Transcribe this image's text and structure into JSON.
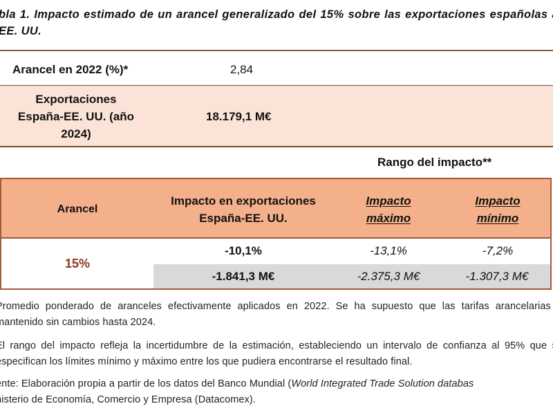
{
  "title": "bla 1. Impacto estimado de un arancel generalizado del 15% sobre las exportaciones españolas a EE. UU.",
  "summary": {
    "tariff_2022_label": "Arancel en 2022 (%)*",
    "tariff_2022_value": "2,84",
    "exports_label": "Exportaciones España-EE. UU. (año 2024)",
    "exports_value": "18.179,1 M€"
  },
  "range_header": "Rango del impacto**",
  "table": {
    "headers": {
      "arancel": "Arancel",
      "impacto": "Impacto en exportaciones España-EE. UU.",
      "maximo": "Impacto máximo",
      "minimo": "Impacto mínimo"
    },
    "row": {
      "arancel": "15%",
      "pct_impact": "-10,1%",
      "pct_max": "-13,1%",
      "pct_min": "-7,2%",
      "abs_impact": "-1.841,3 M€",
      "abs_max": "-2.375,3 M€",
      "abs_min": "-1.307,3 M€"
    }
  },
  "notes": {
    "n1": "Promedio ponderado de aranceles efectivamente aplicados en 2022. Se ha supuesto que las tarifas arancelarias n mantenido sin cambios hasta 2024.",
    "n2": "El rango del impacto refleja la incertidumbre de la estimación, estableciendo un intervalo de confianza al 95% que se especifican los límites mínimo y máximo entre los que pudiera encontrarse el resultado final.",
    "n3_prefix": "ente: Elaboración propia a partir de los datos del Banco Mundial (",
    "n3_italic": "World Integrated Trade Solution databas",
    "n3_suffix": "nisterio de Economía, Comercio y Empresa (Datacomex)."
  }
}
